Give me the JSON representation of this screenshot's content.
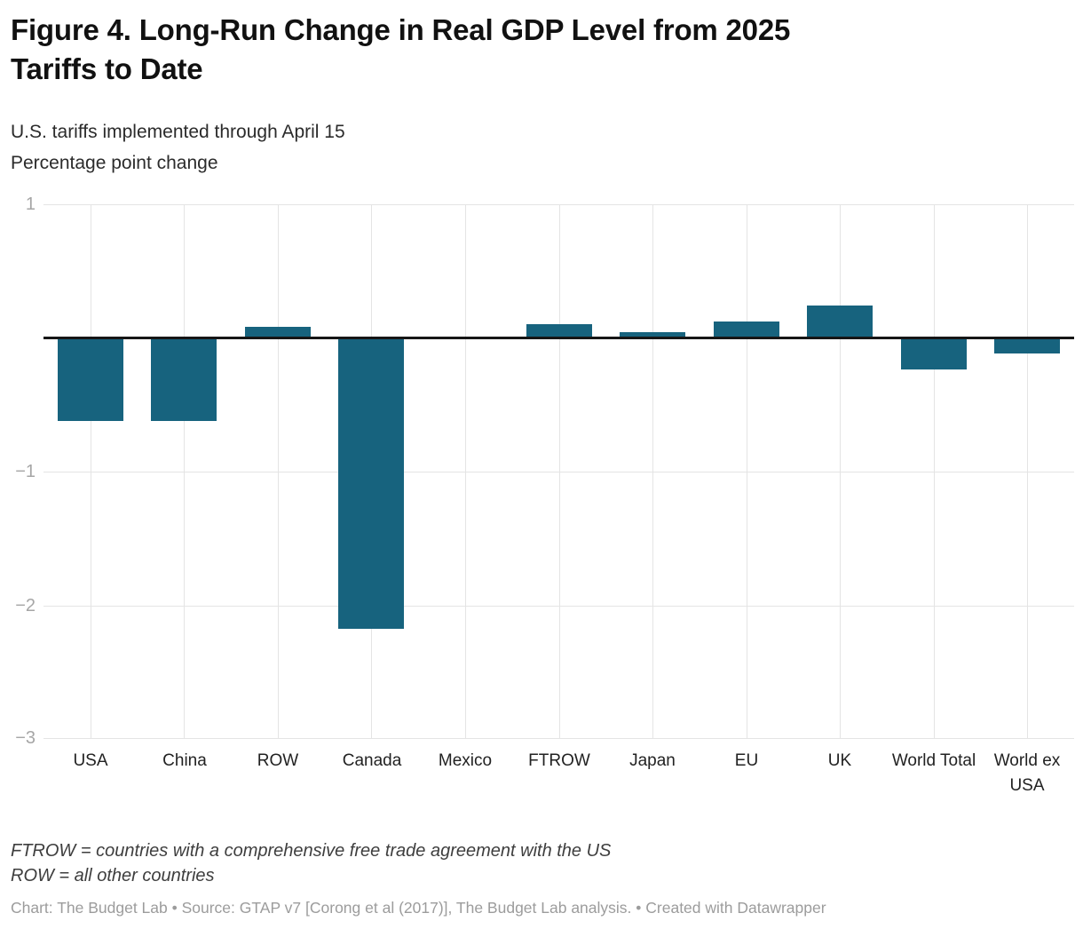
{
  "title": {
    "lines": [
      "Figure 4. Long-Run Change in Real GDP Level from 2025",
      "Tariffs to Date"
    ]
  },
  "description": {
    "lines": [
      "U.S. tariffs implemented through April 15",
      "Percentage point change"
    ]
  },
  "chart_data": {
    "type": "bar",
    "title": "Figure 4. Long-Run Change in Real GDP Level from 2025 Tariffs to Date",
    "subtitle": "U.S. tariffs implemented through April 15",
    "ylabel": "Percentage point change",
    "xlabel": "",
    "categories": [
      "USA",
      "China",
      "ROW",
      "Canada",
      "Mexico",
      "FTROW",
      "Japan",
      "EU",
      "UK",
      "World Total",
      "World ex USA"
    ],
    "values": [
      -0.62,
      -0.62,
      0.08,
      -2.17,
      0.0,
      0.1,
      0.04,
      0.12,
      0.24,
      -0.23,
      -0.11
    ],
    "ylim": [
      -3,
      1
    ],
    "ytick_values": [
      1,
      -1,
      -2,
      -3
    ],
    "ytick_labels": [
      "1",
      "−1",
      "−2",
      "−3"
    ],
    "grid": true,
    "legend": false,
    "bar_color": "#17637e",
    "gridline_color": "#e4e4e4",
    "zero_line_color": "#161616",
    "tick_label_color": "#a6a6a6"
  },
  "notes": {
    "lines": [
      "FTROW = countries with a comprehensive free trade agreement with the US",
      "ROW = all other countries"
    ]
  },
  "credit": "Chart: The Budget Lab • Source: GTAP v7 [Corong et al (2017)], The Budget Lab analysis. • Created with Datawrapper"
}
